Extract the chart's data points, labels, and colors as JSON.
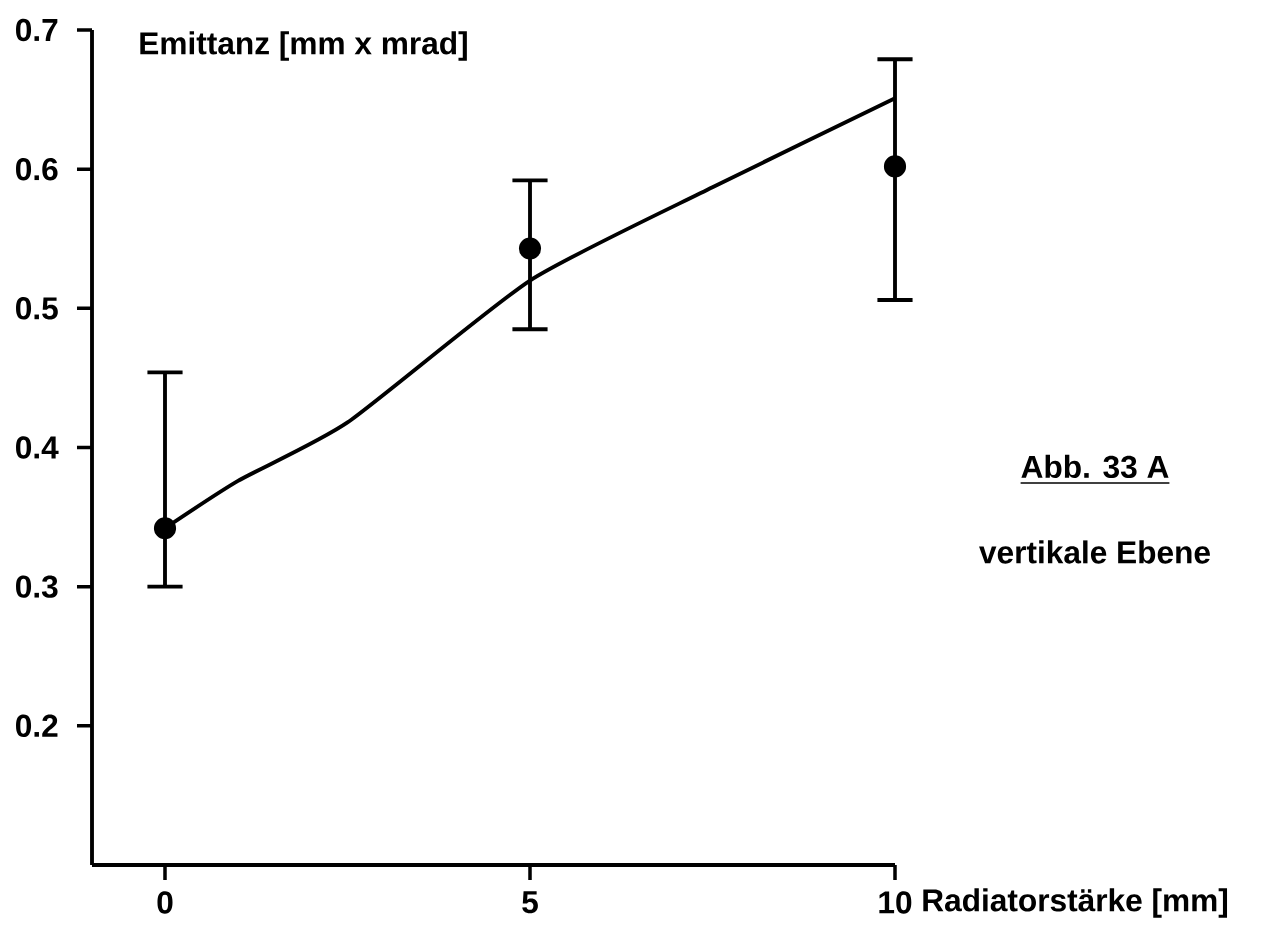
{
  "chart_data": {
    "type": "scatter",
    "xlabel": "Radiatorstärke [mm]",
    "ylabel": "Emittanz [mm x mrad]",
    "annotations": [
      "Abb. 33 A",
      "vertikale Ebene"
    ],
    "xlim": [
      -1,
      10
    ],
    "ylim": [
      0.1,
      0.7
    ],
    "xticks": [
      0,
      5,
      10
    ],
    "yticks": [
      0.2,
      0.3,
      0.4,
      0.5,
      0.6,
      0.7
    ],
    "series": [
      {
        "type": "scatter",
        "color": "#000000",
        "marker": "circle",
        "x": [
          0,
          5,
          10
        ],
        "values": [
          0.342,
          0.543,
          0.602
        ],
        "errors": [
          [
            0.3,
            0.454
          ],
          [
            0.485,
            0.592
          ],
          [
            0.506,
            0.679
          ]
        ]
      },
      {
        "type": "line",
        "color": "#000000",
        "marker": "none",
        "line_style": "solid",
        "x": [
          0,
          1,
          2.5,
          5,
          7.5,
          10
        ],
        "values": [
          0.342,
          0.376,
          0.418,
          0.52,
          0.587,
          0.651
        ]
      }
    ]
  }
}
